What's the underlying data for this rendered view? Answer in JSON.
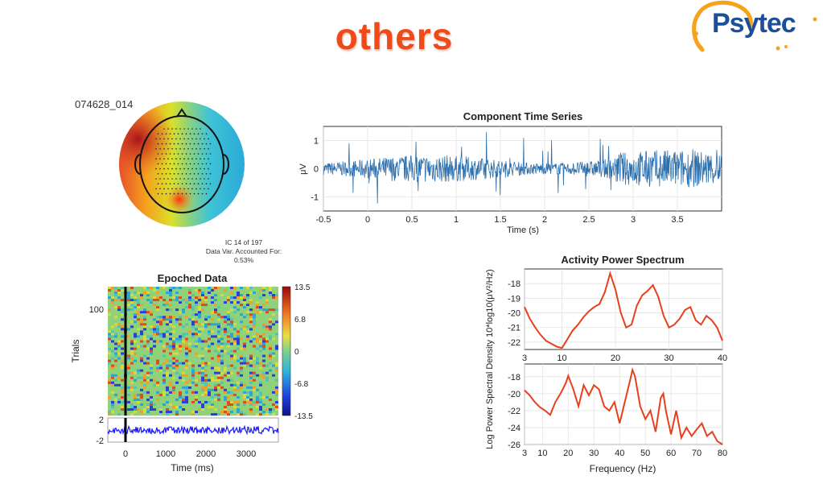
{
  "slide": {
    "title": "others"
  },
  "logo": {
    "text": "Psytec"
  },
  "ic": {
    "id": "074628_014",
    "number_line": "IC 14 of 197",
    "variance_line": "Data Var. Accounted For:",
    "variance_value": "0.53%"
  },
  "colors": {
    "title": "#f04a18",
    "trace": "#2c6fad",
    "spectrum": "#e8401c",
    "erp": "#1a1aff"
  },
  "chart_data": [
    {
      "type": "line",
      "title": "Component Time Series",
      "xlabel": "Time (s)",
      "ylabel": "μV",
      "xlim": [
        -0.5,
        4
      ],
      "ylim": [
        -1.5,
        1.5
      ],
      "xticks": [
        "-0.5",
        "0",
        "0.5",
        "1",
        "1.5",
        "2",
        "2.5",
        "3",
        "3.5"
      ],
      "yticks": [
        "1",
        "0",
        "-1"
      ],
      "signal": "noisy EEG trace, amplitude roughly within ±1.3 μV"
    },
    {
      "type": "heatmap",
      "title": "Epoched Data",
      "xlabel": "Time (ms)",
      "ylabel": "Trials",
      "xticks": [
        "0",
        "1000",
        "2000",
        "3000"
      ],
      "yticks": [
        "100"
      ],
      "colorbar_ticks": [
        "13.5",
        "6.8",
        "0",
        "-6.8",
        "-13.5"
      ],
      "erp_yticks": [
        "2",
        "-2"
      ]
    },
    {
      "type": "line",
      "title": "Activity Power Spectrum",
      "xlabel": "",
      "ylabel": "",
      "xlim": [
        3,
        40
      ],
      "ylim": [
        -22.5,
        -17
      ],
      "xticks": [
        "3",
        "10",
        "20",
        "30",
        "40"
      ],
      "yticks": [
        "-18",
        "-19",
        "-20",
        "-21",
        "-22"
      ],
      "x": [
        3,
        4,
        5,
        6,
        7,
        8,
        9,
        10,
        11,
        12,
        13,
        14,
        15,
        16,
        17,
        18,
        19,
        20,
        21,
        22,
        23,
        24,
        25,
        26,
        27,
        28,
        29,
        30,
        31,
        32,
        33,
        34,
        35,
        36,
        37,
        38,
        39,
        40
      ],
      "values": [
        -19.6,
        -20.4,
        -21.0,
        -21.5,
        -21.9,
        -22.1,
        -22.3,
        -22.4,
        -21.8,
        -21.2,
        -20.8,
        -20.3,
        -19.9,
        -19.6,
        -19.4,
        -18.6,
        -17.3,
        -18.4,
        -20.0,
        -21.0,
        -20.8,
        -19.5,
        -18.8,
        -18.5,
        -18.1,
        -18.9,
        -20.2,
        -21.0,
        -20.8,
        -20.4,
        -19.8,
        -19.6,
        -20.5,
        -20.8,
        -20.2,
        -20.5,
        -21.0,
        -21.9
      ]
    },
    {
      "type": "line",
      "title": "",
      "xlabel": "Frequency (Hz)",
      "ylabel": "Log Power Spectral Density 10*log10(μV²/Hz)",
      "xlim": [
        3,
        80
      ],
      "ylim": [
        -26,
        -16.5
      ],
      "xticks": [
        "3",
        "10",
        "20",
        "30",
        "40",
        "50",
        "60",
        "70",
        "80"
      ],
      "yticks": [
        "-18",
        "-20",
        "-22",
        "-24",
        "-26"
      ],
      "x": [
        3,
        5,
        7,
        9,
        11,
        13,
        15,
        17,
        19,
        20,
        22,
        24,
        26,
        28,
        30,
        32,
        34,
        36,
        38,
        40,
        42,
        44,
        45,
        46,
        48,
        50,
        52,
        54,
        56,
        57,
        58,
        60,
        62,
        64,
        66,
        68,
        70,
        72,
        74,
        76,
        78,
        80
      ],
      "values": [
        -19.6,
        -20.2,
        -21.0,
        -21.6,
        -22.0,
        -22.5,
        -21.0,
        -20.0,
        -18.8,
        -17.9,
        -19.5,
        -21.5,
        -19.0,
        -20.2,
        -19.0,
        -19.5,
        -21.5,
        -22.0,
        -21.0,
        -23.5,
        -21.0,
        -18.5,
        -17.2,
        -18.0,
        -21.5,
        -23.0,
        -22.0,
        -24.5,
        -20.5,
        -20.0,
        -22.0,
        -24.8,
        -22.0,
        -25.2,
        -24.0,
        -25.0,
        -24.2,
        -23.5,
        -25.0,
        -24.5,
        -25.6,
        -26.0
      ]
    }
  ]
}
